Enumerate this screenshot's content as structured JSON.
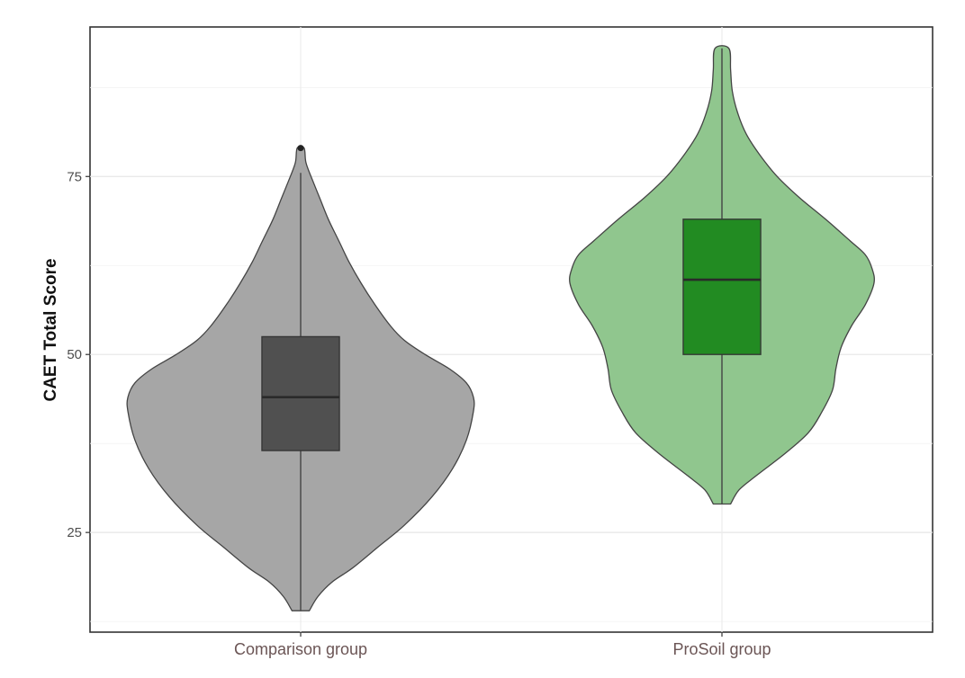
{
  "chart_data": {
    "type": "violin",
    "title": "",
    "xlabel": "",
    "ylabel": "CAET Total Score",
    "ylim": [
      11,
      96
    ],
    "yticks": [
      25,
      50,
      75
    ],
    "grid": true,
    "legend": "none",
    "categories": [
      "Comparison group",
      "ProSoil group"
    ],
    "series": [
      {
        "category": "Comparison group",
        "color": "#a6a6a6",
        "box_color": "#505050",
        "min": 14,
        "q1": 36.5,
        "median": 44,
        "q3": 52.5,
        "whisker_high": 75.5,
        "max": 79,
        "outliers": [
          79
        ],
        "density": [
          [
            14,
            0.05
          ],
          [
            16,
            0.1
          ],
          [
            18,
            0.18
          ],
          [
            20,
            0.3
          ],
          [
            23,
            0.45
          ],
          [
            26,
            0.6
          ],
          [
            30,
            0.76
          ],
          [
            34,
            0.88
          ],
          [
            38,
            0.96
          ],
          [
            42,
            1.0
          ],
          [
            44,
            1.0
          ],
          [
            46,
            0.96
          ],
          [
            48,
            0.86
          ],
          [
            50,
            0.72
          ],
          [
            52,
            0.6
          ],
          [
            54,
            0.52
          ],
          [
            57,
            0.43
          ],
          [
            60,
            0.35
          ],
          [
            63,
            0.28
          ],
          [
            66,
            0.22
          ],
          [
            69,
            0.16
          ],
          [
            72,
            0.11
          ],
          [
            75,
            0.06
          ],
          [
            77,
            0.03
          ],
          [
            79,
            0.02
          ]
        ]
      },
      {
        "category": "ProSoil group",
        "color": "#90c68e",
        "box_color": "#228b22",
        "min": 29,
        "q1": 50,
        "median": 60.5,
        "q3": 69,
        "whisker_high": 93,
        "max": 93,
        "outliers": [],
        "density": [
          [
            29,
            0.05
          ],
          [
            31,
            0.1
          ],
          [
            33,
            0.2
          ],
          [
            36,
            0.36
          ],
          [
            39,
            0.5
          ],
          [
            42,
            0.58
          ],
          [
            45,
            0.64
          ],
          [
            48,
            0.66
          ],
          [
            51,
            0.69
          ],
          [
            54,
            0.75
          ],
          [
            57,
            0.83
          ],
          [
            60,
            0.88
          ],
          [
            62,
            0.87
          ],
          [
            64,
            0.83
          ],
          [
            66,
            0.74
          ],
          [
            69,
            0.6
          ],
          [
            72,
            0.45
          ],
          [
            75,
            0.32
          ],
          [
            78,
            0.22
          ],
          [
            81,
            0.14
          ],
          [
            84,
            0.09
          ],
          [
            87,
            0.06
          ],
          [
            90,
            0.05
          ],
          [
            93,
            0.04
          ]
        ]
      }
    ]
  }
}
